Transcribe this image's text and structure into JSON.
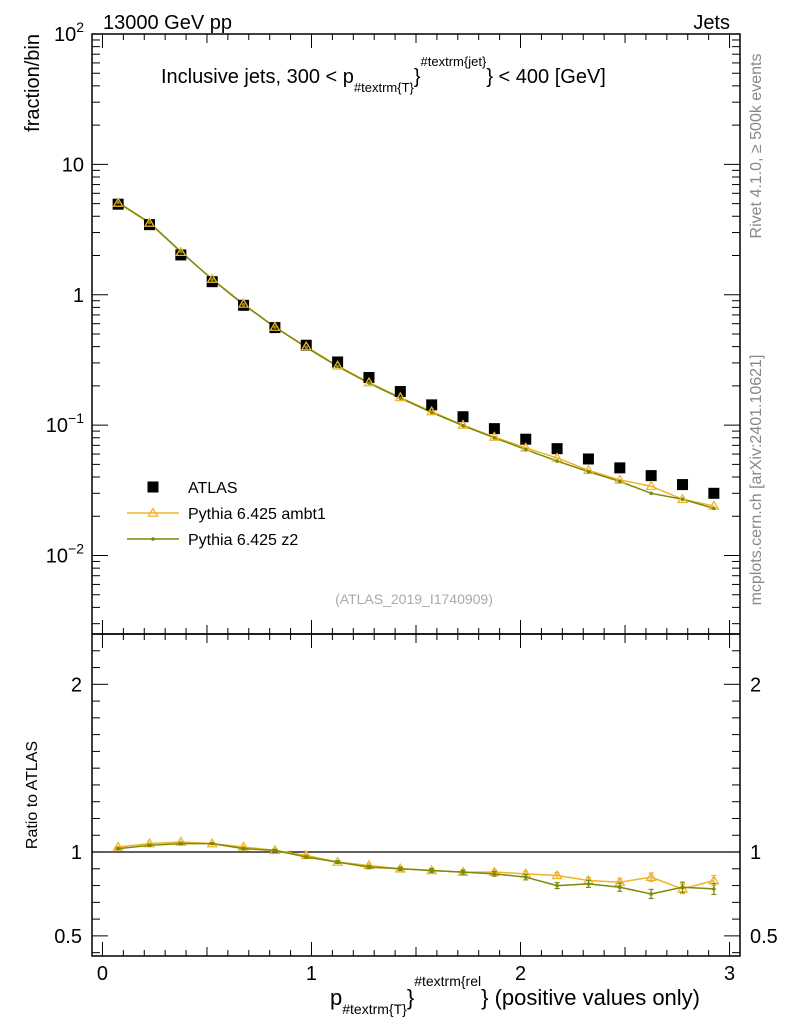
{
  "header": {
    "left": "13000 GeV pp",
    "right": "Jets"
  },
  "side": {
    "rivet": "Rivet 4.1.0, ≥ 500k events",
    "site": "mcplots.cern.ch [arXiv:2401.10621]"
  },
  "chart_data": [
    {
      "type": "line",
      "title_parts": [
        "Inclusive jets, 300 < p",
        "#textrm{T}",
        "}",
        "#textrm{jet}",
        "} < 400 [GeV]"
      ],
      "ylabel": "fraction/bin",
      "yscale": "log",
      "ylim": [
        0.0025,
        100
      ],
      "xlim": [
        -0.05,
        3.05
      ],
      "analysis_label": "(ATLAS_2019_I1740909)",
      "y_ticks": [
        {
          "value": 100,
          "base": "10",
          "exp": "2"
        },
        {
          "value": 10,
          "base": "10",
          "exp": ""
        },
        {
          "value": 1,
          "base": "1",
          "exp": ""
        },
        {
          "value": 0.1,
          "base": "10",
          "exp": "−1"
        },
        {
          "value": 0.01,
          "base": "10",
          "exp": "−2"
        }
      ],
      "x": [
        0.075,
        0.225,
        0.375,
        0.525,
        0.675,
        0.825,
        0.975,
        1.125,
        1.275,
        1.425,
        1.575,
        1.725,
        1.875,
        2.025,
        2.175,
        2.325,
        2.475,
        2.625,
        2.775,
        2.925
      ],
      "series": [
        {
          "name": "ATLAS",
          "color": "#000000",
          "marker": "square",
          "values": [
            4.95,
            3.45,
            2.02,
            1.26,
            0.83,
            0.56,
            0.41,
            0.305,
            0.232,
            0.181,
            0.143,
            0.116,
            0.094,
            0.078,
            0.066,
            0.055,
            0.047,
            0.041,
            0.035,
            0.03
          ]
        },
        {
          "name": "Pythia 6.425 ambt1",
          "color": "#f0b428",
          "marker": "triangle",
          "values": [
            5.05,
            3.55,
            2.12,
            1.32,
            0.85,
            0.565,
            0.4,
            0.285,
            0.212,
            0.163,
            0.127,
            0.1,
            0.081,
            0.067,
            0.056,
            0.045,
            0.038,
            0.034,
            0.027,
            0.024
          ]
        },
        {
          "name": "Pythia 6.425 z2",
          "color": "#7a8a0a",
          "marker": "dot",
          "values": [
            5.1,
            3.58,
            2.14,
            1.31,
            0.84,
            0.565,
            0.395,
            0.282,
            0.21,
            0.161,
            0.125,
            0.099,
            0.08,
            0.065,
            0.053,
            0.044,
            0.037,
            0.03,
            0.027,
            0.023
          ]
        }
      ]
    },
    {
      "type": "line",
      "ylabel": "Ratio to ATLAS",
      "ylim": [
        0.38,
        2.3
      ],
      "xlim": [
        -0.05,
        3.05
      ],
      "xlabel_parts": [
        "p",
        "#textrm{T}",
        "}",
        "#textrm{rel",
        "} (positive values only)"
      ],
      "x_ticks": [
        "0",
        "1",
        "2",
        "3"
      ],
      "y_ticks": [
        "0.5",
        "1",
        "2"
      ],
      "x": [
        0.075,
        0.225,
        0.375,
        0.525,
        0.675,
        0.825,
        0.975,
        1.125,
        1.275,
        1.425,
        1.575,
        1.725,
        1.875,
        2.025,
        2.175,
        2.325,
        2.475,
        2.625,
        2.775,
        2.925
      ],
      "series": [
        {
          "name": "Pythia 6.425 ambt1",
          "color": "#f0b428",
          "marker": "triangle",
          "values": [
            1.03,
            1.05,
            1.06,
            1.05,
            1.03,
            1.01,
            0.98,
            0.94,
            0.92,
            0.9,
            0.89,
            0.88,
            0.88,
            0.87,
            0.86,
            0.83,
            0.82,
            0.85,
            0.78,
            0.83
          ],
          "errors": [
            0.004,
            0.004,
            0.004,
            0.005,
            0.005,
            0.006,
            0.007,
            0.008,
            0.009,
            0.01,
            0.011,
            0.012,
            0.013,
            0.015,
            0.017,
            0.019,
            0.022,
            0.025,
            0.028,
            0.03
          ]
        },
        {
          "name": "Pythia 6.425 z2",
          "color": "#7a8a0a",
          "marker": "dot",
          "values": [
            1.02,
            1.04,
            1.05,
            1.05,
            1.02,
            1.01,
            0.97,
            0.94,
            0.91,
            0.9,
            0.89,
            0.88,
            0.87,
            0.85,
            0.8,
            0.81,
            0.79,
            0.75,
            0.79,
            0.78
          ],
          "errors": [
            0.004,
            0.004,
            0.004,
            0.005,
            0.005,
            0.006,
            0.007,
            0.008,
            0.009,
            0.01,
            0.011,
            0.012,
            0.014,
            0.016,
            0.018,
            0.021,
            0.024,
            0.027,
            0.03,
            0.033
          ]
        }
      ]
    }
  ]
}
